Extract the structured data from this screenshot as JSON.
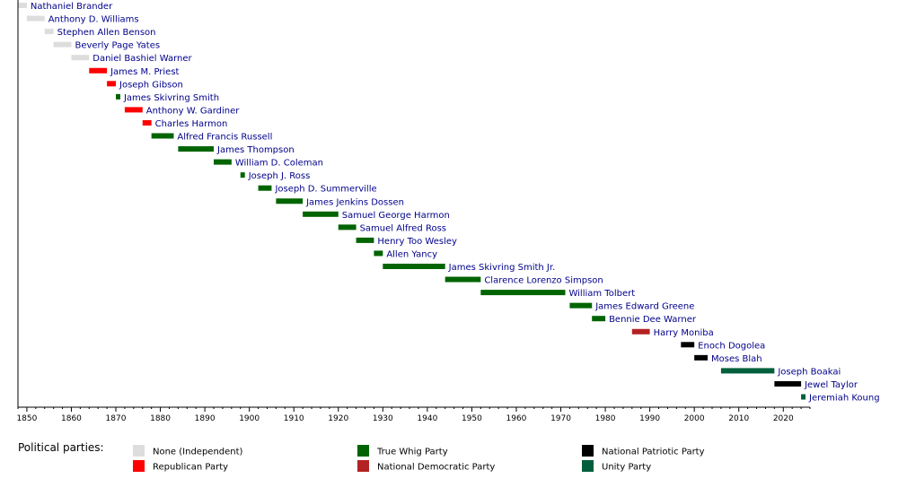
{
  "chart_data": {
    "type": "timeline",
    "title": "",
    "xlabel": "",
    "ylabel": "",
    "xlim": [
      1848,
      2026
    ],
    "x_ticks": [
      1850,
      1860,
      1870,
      1880,
      1890,
      1900,
      1910,
      1920,
      1930,
      1940,
      1950,
      1960,
      1970,
      1980,
      1990,
      2000,
      2010,
      2020
    ],
    "grid": false,
    "legend_placement": "bottom",
    "legend_title": "Political parties:",
    "parties": [
      {
        "key": "independent",
        "label": "None (Independent)",
        "color": "#dddddd"
      },
      {
        "key": "republican",
        "label": "Republican Party",
        "color": "#ff0000"
      },
      {
        "key": "whig",
        "label": "True Whig Party",
        "color": "#006400"
      },
      {
        "key": "ndp",
        "label": "National Democratic Party",
        "color": "#b22222"
      },
      {
        "key": "npp",
        "label": "National Patriotic Party",
        "color": "#000000"
      },
      {
        "key": "unity",
        "label": "Unity Party",
        "color": "#005f3c"
      }
    ],
    "entries": [
      {
        "name": "Nathaniel Brander",
        "start": 1848,
        "end": 1850,
        "party": "independent"
      },
      {
        "name": "Anthony D. Williams",
        "start": 1850,
        "end": 1854,
        "party": "independent"
      },
      {
        "name": "Stephen Allen Benson",
        "start": 1854,
        "end": 1856,
        "party": "independent"
      },
      {
        "name": "Beverly Page Yates",
        "start": 1856,
        "end": 1860,
        "party": "independent"
      },
      {
        "name": "Daniel Bashiel Warner",
        "start": 1860,
        "end": 1864,
        "party": "independent"
      },
      {
        "name": "James M. Priest",
        "start": 1864,
        "end": 1868,
        "party": "republican"
      },
      {
        "name": "Joseph Gibson",
        "start": 1868,
        "end": 1870,
        "party": "republican"
      },
      {
        "name": "James Skivring Smith",
        "start": 1870,
        "end": 1871,
        "party": "whig"
      },
      {
        "name": "Anthony W. Gardiner",
        "start": 1872,
        "end": 1876,
        "party": "republican"
      },
      {
        "name": "Charles Harmon",
        "start": 1876,
        "end": 1878,
        "party": "republican"
      },
      {
        "name": "Alfred Francis Russell",
        "start": 1878,
        "end": 1883,
        "party": "whig"
      },
      {
        "name": "James Thompson",
        "start": 1884,
        "end": 1892,
        "party": "whig"
      },
      {
        "name": "William D. Coleman",
        "start": 1892,
        "end": 1896,
        "party": "whig"
      },
      {
        "name": "Joseph J. Ross",
        "start": 1898,
        "end": 1899,
        "party": "whig"
      },
      {
        "name": "Joseph D. Summerville",
        "start": 1902,
        "end": 1905,
        "party": "whig"
      },
      {
        "name": "James Jenkins Dossen",
        "start": 1906,
        "end": 1912,
        "party": "whig"
      },
      {
        "name": "Samuel George Harmon",
        "start": 1912,
        "end": 1920,
        "party": "whig"
      },
      {
        "name": "Samuel Alfred Ross",
        "start": 1920,
        "end": 1924,
        "party": "whig"
      },
      {
        "name": "Henry Too Wesley",
        "start": 1924,
        "end": 1928,
        "party": "whig"
      },
      {
        "name": "Allen Yancy",
        "start": 1928,
        "end": 1930,
        "party": "whig"
      },
      {
        "name": "James Skivring Smith Jr.",
        "start": 1930,
        "end": 1944,
        "party": "whig"
      },
      {
        "name": "Clarence Lorenzo Simpson",
        "start": 1944,
        "end": 1952,
        "party": "whig"
      },
      {
        "name": "William Tolbert",
        "start": 1952,
        "end": 1971,
        "party": "whig"
      },
      {
        "name": "James Edward Greene",
        "start": 1972,
        "end": 1977,
        "party": "whig"
      },
      {
        "name": "Bennie Dee Warner",
        "start": 1977,
        "end": 1980,
        "party": "whig"
      },
      {
        "name": "Harry Moniba",
        "start": 1986,
        "end": 1990,
        "party": "ndp"
      },
      {
        "name": "Enoch Dogolea",
        "start": 1997,
        "end": 2000,
        "party": "npp"
      },
      {
        "name": "Moses Blah",
        "start": 2000,
        "end": 2003,
        "party": "npp"
      },
      {
        "name": "Joseph Boakai",
        "start": 2006,
        "end": 2018,
        "party": "unity"
      },
      {
        "name": "Jewel Taylor",
        "start": 2018,
        "end": 2024,
        "party": "npp"
      },
      {
        "name": "Jeremiah Koung",
        "start": 2024,
        "end": 2025,
        "party": "unity"
      }
    ]
  }
}
